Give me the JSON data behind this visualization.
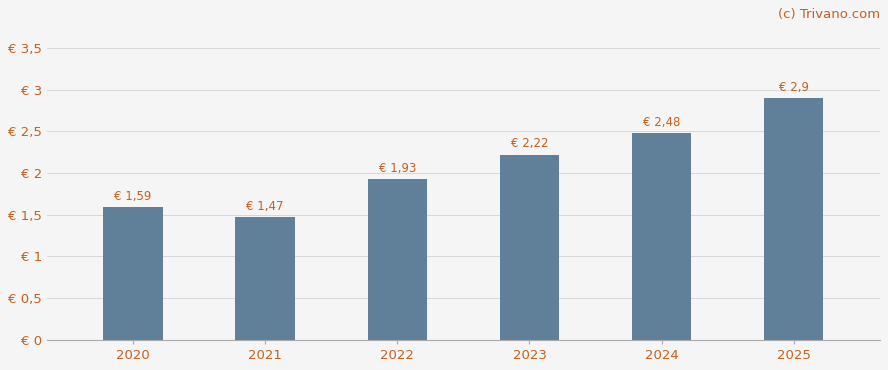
{
  "categories": [
    "2020",
    "2021",
    "2022",
    "2023",
    "2024",
    "2025"
  ],
  "values": [
    1.59,
    1.47,
    1.93,
    2.22,
    2.48,
    2.9
  ],
  "labels": [
    "€ 1,59",
    "€ 1,47",
    "€ 1,93",
    "€ 2,22",
    "€ 2,48",
    "€ 2,9"
  ],
  "bar_color": "#5f8098",
  "background_color": "#f5f5f5",
  "yticks": [
    0,
    0.5,
    1.0,
    1.5,
    2.0,
    2.5,
    3.0,
    3.5
  ],
  "ytick_labels": [
    "€ 0",
    "€ 0,5",
    "€ 1",
    "€ 1,5",
    "€ 2",
    "€ 2,5",
    "€ 3",
    "€ 3,5"
  ],
  "ylim": [
    0,
    3.75
  ],
  "watermark": "(c) Trivano.com",
  "accent_color": "#c8601a",
  "grid_color": "#d8d8d8",
  "label_fontsize": 8.5,
  "tick_fontsize": 9.5,
  "watermark_fontsize": 9.5,
  "bar_width": 0.45
}
